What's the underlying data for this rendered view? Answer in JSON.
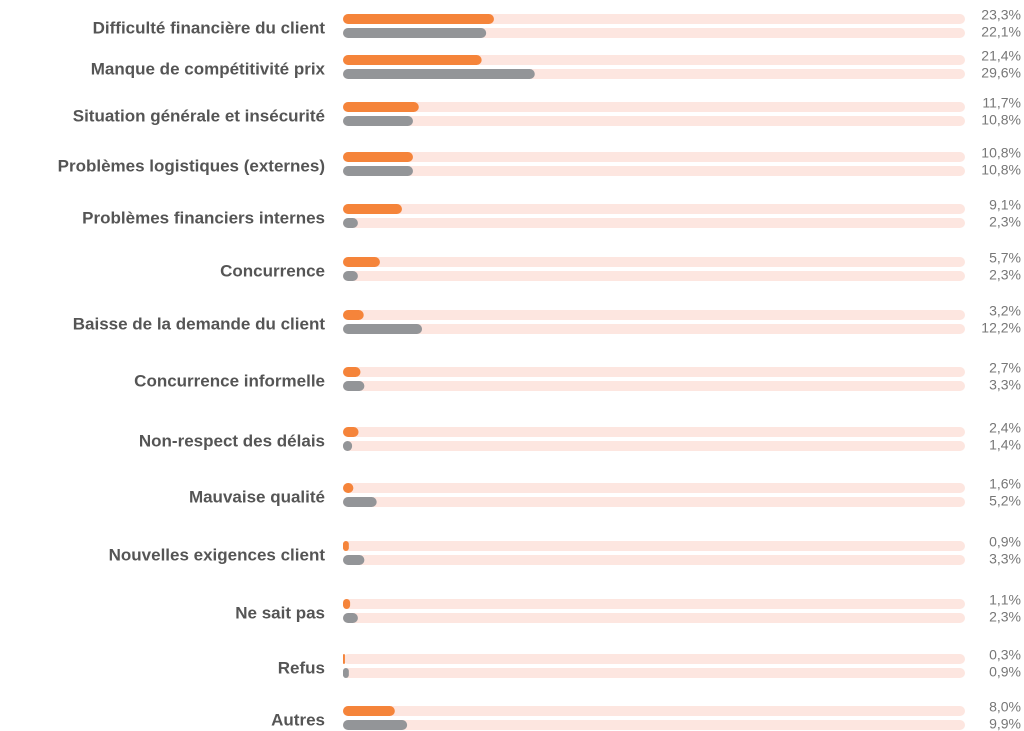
{
  "chart_data": {
    "type": "bar",
    "orientation": "horizontal",
    "categories": [
      "Difficulté financière du client",
      "Manque de compétitivité prix",
      "Situation générale et insécurité",
      "Problèmes logistiques (externes)",
      "Problèmes financiers internes",
      "Concurrence",
      "Baisse de la demande du client",
      "Concurrence informelle",
      "Non-respect des délais",
      "Mauvaise qualité",
      "Nouvelles exigences client",
      "Ne sait pas",
      "Refus",
      "Autres"
    ],
    "series": [
      {
        "color": "#f5843a",
        "values": [
          23.3,
          21.4,
          11.7,
          10.8,
          9.1,
          5.7,
          3.2,
          2.7,
          2.4,
          1.6,
          0.9,
          1.1,
          0.3,
          8.0
        ],
        "value_labels": [
          "23,3%",
          "21,4%",
          "11,7%",
          "10,8%",
          "9,1%",
          "5,7%",
          "3,2%",
          "2,7%",
          "2,4%",
          "1,6%",
          "0,9%",
          "1,1%",
          "0,3%",
          "8,0%"
        ]
      },
      {
        "color": "#939598",
        "values": [
          22.1,
          29.6,
          10.8,
          10.8,
          2.3,
          2.3,
          12.2,
          3.3,
          1.4,
          5.2,
          3.3,
          2.3,
          0.9,
          9.9
        ],
        "value_labels": [
          "22,1%",
          "29,6%",
          "10,8%",
          "10,8%",
          "2,3%",
          "2,3%",
          "12,2%",
          "3,3%",
          "1,4%",
          "5,2%",
          "3,3%",
          "2,3%",
          "0,9%",
          "9,9%"
        ]
      }
    ],
    "track_color": "#fde6e0",
    "xlim": [
      0,
      96
    ]
  }
}
